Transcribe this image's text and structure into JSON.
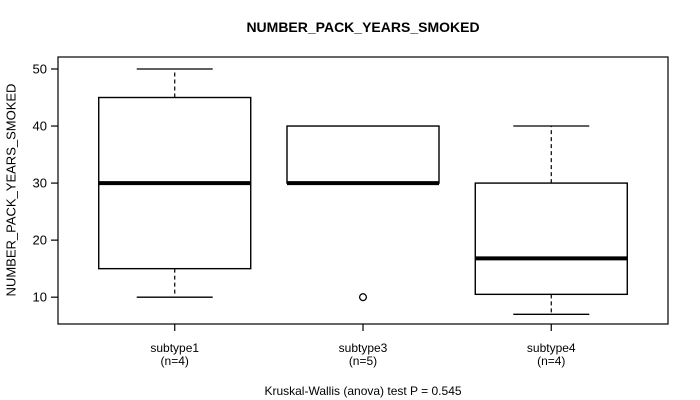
{
  "page": {
    "background": "#ffffff"
  },
  "chart_data": {
    "type": "boxplot",
    "title": "NUMBER_PACK_YEARS_SMOKED",
    "ylabel": "NUMBER_PACK_YEARS_SMOKED",
    "xlabel": "",
    "annotation": "Kruskal-Wallis (anova) test P = 0.545",
    "p_value": 0.545,
    "yticks": [
      10,
      20,
      30,
      40,
      50
    ],
    "ylim": [
      5.3,
      52.1
    ],
    "grid": false,
    "legend": null,
    "colors": {
      "line": "#000000",
      "fill": "#ffffff",
      "background": "#ffffff"
    },
    "groups": [
      {
        "label": "subtype1",
        "sublabel": "(n=4)",
        "n": 4,
        "whisker_low": 10,
        "q1": 15,
        "median": 30,
        "q3": 45,
        "whisker_high": 50,
        "outliers": []
      },
      {
        "label": "subtype3",
        "sublabel": "(n=5)",
        "n": 5,
        "whisker_low": 30,
        "q1": 30,
        "median": 30,
        "q3": 40,
        "whisker_high": 40,
        "outliers": [
          10
        ]
      },
      {
        "label": "subtype4",
        "sublabel": "(n=4)",
        "n": 4,
        "whisker_low": 7,
        "q1": 10.5,
        "median": 16.8,
        "q3": 30,
        "whisker_high": 40,
        "outliers": []
      }
    ]
  }
}
